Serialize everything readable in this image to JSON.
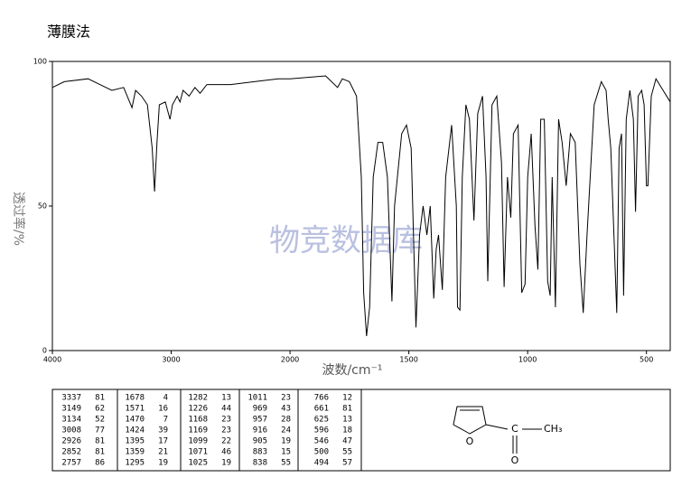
{
  "chart_data": {
    "type": "line",
    "title": "薄膜法",
    "xlabel": "波数/cm⁻¹",
    "ylabel": "透过率/%",
    "watermark": "物竞数据库",
    "x": [
      4000,
      3900,
      3700,
      3600,
      3500,
      3400,
      3350,
      3330,
      3300,
      3250,
      3200,
      3160,
      3140,
      3120,
      3100,
      3050,
      3010,
      2990,
      2950,
      2926,
      2900,
      2850,
      2800,
      2757,
      2700,
      2500,
      2300,
      2100,
      2000,
      1850,
      1800,
      1780,
      1750,
      1720,
      1700,
      1690,
      1678,
      1665,
      1650,
      1630,
      1610,
      1590,
      1571,
      1560,
      1530,
      1510,
      1490,
      1470,
      1455,
      1440,
      1424,
      1410,
      1395,
      1385,
      1375,
      1359,
      1345,
      1320,
      1300,
      1295,
      1285,
      1275,
      1260,
      1245,
      1226,
      1210,
      1190,
      1175,
      1168,
      1150,
      1130,
      1110,
      1099,
      1085,
      1071,
      1060,
      1040,
      1025,
      1011,
      1000,
      985,
      969,
      957,
      945,
      930,
      916,
      905,
      897,
      883,
      870,
      855,
      838,
      820,
      800,
      780,
      766,
      750,
      720,
      690,
      670,
      661,
      650,
      625,
      615,
      605,
      596,
      585,
      570,
      555,
      546,
      535,
      520,
      510,
      500,
      494,
      480,
      460,
      430,
      400
    ],
    "values": [
      91,
      93,
      94,
      92,
      90,
      91,
      86,
      84,
      90,
      88,
      85,
      70,
      55,
      72,
      85,
      86,
      80,
      85,
      88,
      86,
      90,
      88,
      91,
      89,
      92,
      92,
      93,
      94,
      94,
      95,
      91,
      94,
      93,
      88,
      60,
      20,
      5,
      15,
      60,
      72,
      72,
      60,
      17,
      50,
      75,
      78,
      70,
      8,
      40,
      50,
      40,
      50,
      18,
      35,
      40,
      21,
      60,
      78,
      50,
      15,
      14,
      60,
      85,
      80,
      45,
      82,
      88,
      60,
      24,
      85,
      88,
      65,
      22,
      60,
      46,
      75,
      78,
      20,
      23,
      60,
      75,
      43,
      28,
      80,
      80,
      24,
      19,
      60,
      15,
      80,
      72,
      57,
      75,
      72,
      30,
      13,
      40,
      85,
      93,
      90,
      80,
      70,
      13,
      70,
      75,
      19,
      80,
      90,
      80,
      48,
      88,
      90,
      85,
      57,
      57,
      88,
      94,
      90,
      86
    ],
    "color": "#000000",
    "xlim": [
      4000,
      400
    ],
    "xticks": [
      4000,
      3000,
      2000,
      1500,
      1000,
      500
    ],
    "ylim": [
      0,
      100
    ],
    "yticks": [
      0,
      50,
      100
    ]
  },
  "peak_table": {
    "groups": [
      {
        "wavenumbers": [
          3337,
          3149,
          3134,
          3008,
          2926,
          2852,
          2757
        ],
        "transmittance": [
          81,
          62,
          52,
          77,
          81,
          81,
          86
        ]
      },
      {
        "wavenumbers": [
          1678,
          1571,
          1470,
          1424,
          1395,
          1359,
          1295
        ],
        "transmittance": [
          4,
          16,
          7,
          39,
          17,
          21,
          19
        ]
      },
      {
        "wavenumbers": [
          1282,
          1226,
          1168,
          1169,
          1099,
          1071,
          1025
        ],
        "transmittance": [
          13,
          44,
          23,
          23,
          22,
          46,
          19
        ]
      },
      {
        "wavenumbers": [
          1011,
          969,
          957,
          916,
          905,
          883,
          838
        ],
        "transmittance": [
          23,
          43,
          28,
          24,
          19,
          15,
          55
        ]
      },
      {
        "wavenumbers": [
          766,
          661,
          625,
          596,
          546,
          500,
          494
        ],
        "transmittance": [
          12,
          81,
          13,
          18,
          47,
          55,
          57
        ]
      }
    ]
  },
  "structure": {
    "ring_oxygen": "O",
    "carbonyl_oxygen": "O",
    "carbon": "C",
    "methyl": "CH₃"
  }
}
